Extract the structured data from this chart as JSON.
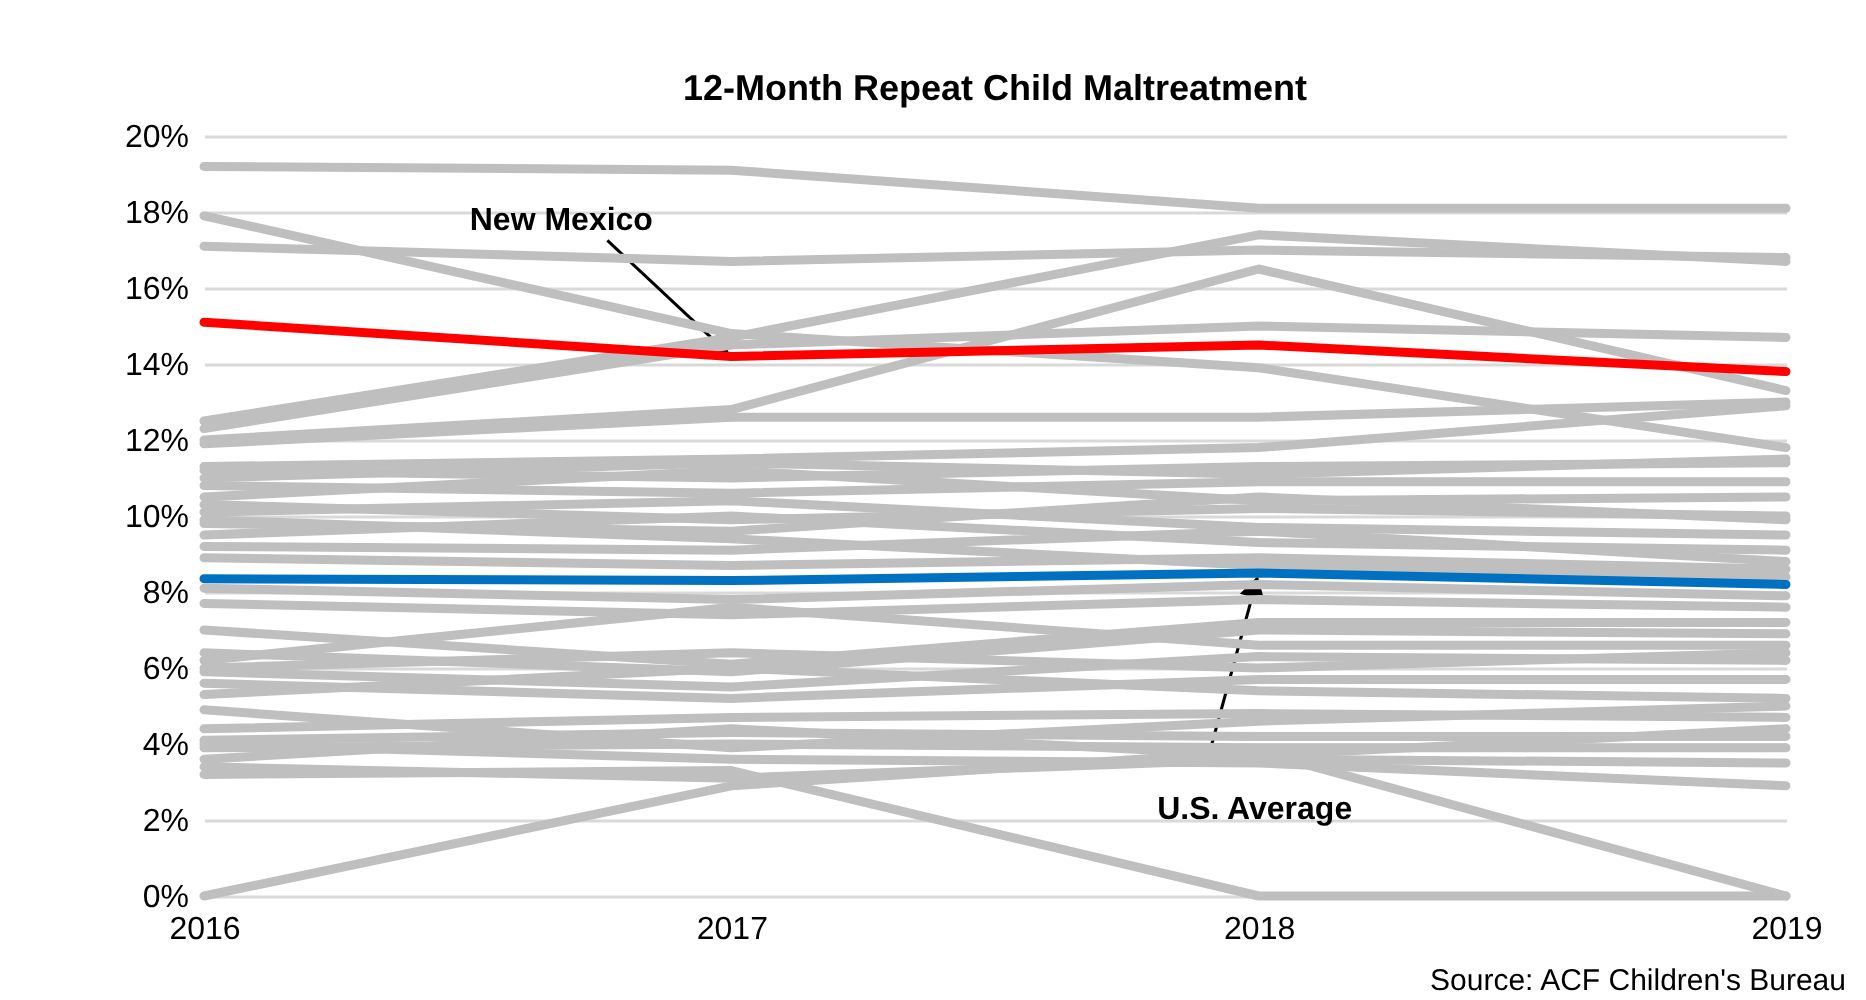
{
  "chart_data": {
    "type": "line",
    "title": "12-Month Repeat Child Maltreatment",
    "x": [
      2016,
      2017,
      2018,
      2019
    ],
    "xlim": [
      2016,
      2019
    ],
    "xticks": [
      2016,
      2017,
      2018,
      2019
    ],
    "ylim": [
      0,
      20
    ],
    "yticks": [
      {
        "value": 0,
        "label": "0%"
      },
      {
        "value": 2,
        "label": "2%"
      },
      {
        "value": 4,
        "label": "4%"
      },
      {
        "value": 6,
        "label": "6%"
      },
      {
        "value": 8,
        "label": "8%"
      },
      {
        "value": 10,
        "label": "10%"
      },
      {
        "value": 12,
        "label": "12%"
      },
      {
        "value": 14,
        "label": "14%"
      },
      {
        "value": 16,
        "label": "16%"
      },
      {
        "value": 18,
        "label": "18%"
      },
      {
        "value": 20,
        "label": "20%"
      }
    ],
    "grid": "y",
    "line_style": "solid",
    "series": [
      {
        "color": "#bfbfbf",
        "values": [
          19.2,
          19.1,
          18.1,
          18.1
        ]
      },
      {
        "color": "#bfbfbf",
        "values": [
          17.9,
          14.8,
          13.9,
          11.8
        ]
      },
      {
        "color": "#bfbfbf",
        "values": [
          17.1,
          16.7,
          17.0,
          16.8
        ]
      },
      {
        "color": "#bfbfbf",
        "values": [
          12.5,
          14.7,
          17.4,
          16.7
        ]
      },
      {
        "color": "#bfbfbf",
        "values": [
          12.3,
          14.5,
          15.0,
          14.7
        ]
      },
      {
        "color": "#bfbfbf",
        "values": [
          12.0,
          12.8,
          16.5,
          13.3
        ]
      },
      {
        "color": "#bfbfbf",
        "values": [
          11.9,
          12.6,
          12.6,
          13.0
        ]
      },
      {
        "color": "#bfbfbf",
        "values": [
          11.3,
          11.5,
          11.8,
          12.9
        ]
      },
      {
        "color": "#bfbfbf",
        "values": [
          11.2,
          11.0,
          11.3,
          11.4
        ]
      },
      {
        "color": "#bfbfbf",
        "values": [
          11.0,
          11.4,
          11.1,
          11.5
        ]
      },
      {
        "color": "#bfbfbf",
        "values": [
          10.8,
          10.6,
          10.9,
          10.9
        ]
      },
      {
        "color": "#bfbfbf",
        "values": [
          10.5,
          11.2,
          10.4,
          10.5
        ]
      },
      {
        "color": "#bfbfbf",
        "values": [
          10.3,
          9.9,
          10.2,
          10.0
        ]
      },
      {
        "color": "#bfbfbf",
        "values": [
          10.1,
          10.4,
          9.7,
          9.5
        ]
      },
      {
        "color": "#bfbfbf",
        "values": [
          9.9,
          9.4,
          8.7,
          8.4
        ]
      },
      {
        "color": "#bfbfbf",
        "values": [
          9.8,
          9.6,
          10.5,
          9.9
        ]
      },
      {
        "color": "#bfbfbf",
        "values": [
          9.5,
          10.0,
          9.3,
          9.1
        ]
      },
      {
        "color": "#bfbfbf",
        "values": [
          9.2,
          9.1,
          9.6,
          8.8
        ]
      },
      {
        "color": "#bfbfbf",
        "values": [
          8.9,
          8.7,
          8.9,
          8.6
        ]
      },
      {
        "color": "#bfbfbf",
        "values": [
          8.1,
          7.8,
          8.2,
          7.9
        ]
      },
      {
        "color": "#bfbfbf",
        "values": [
          7.7,
          7.4,
          7.8,
          7.6
        ]
      },
      {
        "color": "#bfbfbf",
        "values": [
          7.0,
          6.1,
          7.2,
          7.2
        ]
      },
      {
        "color": "#bfbfbf",
        "values": [
          6.4,
          5.9,
          7.0,
          6.9
        ]
      },
      {
        "color": "#bfbfbf",
        "values": [
          6.2,
          7.6,
          6.6,
          6.6
        ]
      },
      {
        "color": "#bfbfbf",
        "values": [
          6.0,
          6.4,
          6.0,
          6.4
        ]
      },
      {
        "color": "#bfbfbf",
        "values": [
          5.9,
          5.5,
          6.3,
          6.2
        ]
      },
      {
        "color": "#bfbfbf",
        "values": [
          5.6,
          5.2,
          5.7,
          5.7
        ]
      },
      {
        "color": "#bfbfbf",
        "values": [
          5.3,
          6.0,
          5.4,
          5.2
        ]
      },
      {
        "color": "#bfbfbf",
        "values": [
          4.9,
          3.9,
          4.6,
          5.0
        ]
      },
      {
        "color": "#bfbfbf",
        "values": [
          4.4,
          4.7,
          4.8,
          4.7
        ]
      },
      {
        "color": "#bfbfbf",
        "values": [
          4.1,
          4.3,
          4.2,
          4.2
        ]
      },
      {
        "color": "#bfbfbf",
        "values": [
          4.0,
          3.6,
          3.5,
          2.9
        ]
      },
      {
        "color": "#bfbfbf",
        "values": [
          3.9,
          4.0,
          3.9,
          3.9
        ]
      },
      {
        "color": "#bfbfbf",
        "values": [
          3.6,
          4.4,
          3.7,
          4.4
        ]
      },
      {
        "color": "#bfbfbf",
        "values": [
          3.4,
          3.1,
          3.6,
          3.5
        ]
      },
      {
        "color": "#bfbfbf",
        "values": [
          3.2,
          3.3,
          0.0,
          0.0
        ]
      },
      {
        "color": "#bfbfbf",
        "values": [
          0.0,
          2.9,
          3.8,
          0.0
        ]
      },
      {
        "color": "#ff0000",
        "values": [
          15.1,
          14.2,
          14.5,
          13.8
        ]
      },
      {
        "color": "#0070c0",
        "values": [
          8.35,
          8.3,
          8.5,
          8.2
        ]
      }
    ],
    "annotations": [
      {
        "text": "New Mexico",
        "x": 2017,
        "y": 14.2
      },
      {
        "text": "U.S. Average",
        "x": 2018,
        "y": 8.5
      },
      "Source: ACF Children's Bureau"
    ]
  }
}
